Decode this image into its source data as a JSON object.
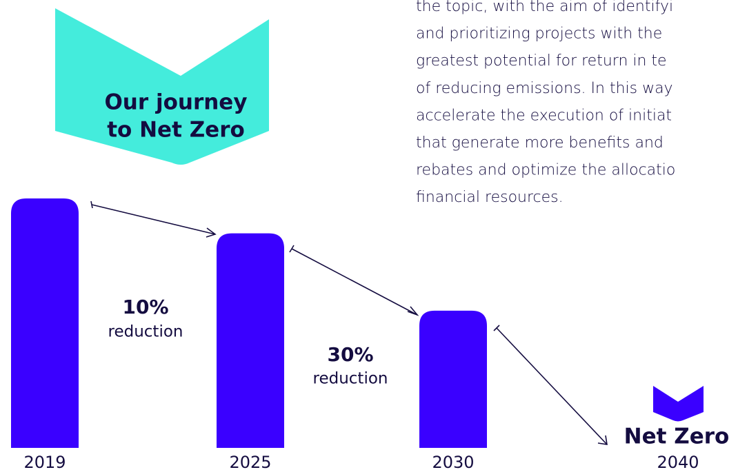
{
  "chart_data": {
    "type": "bar",
    "title": [
      "Our journey",
      "to Net Zero"
    ],
    "text_lines": [
      "the topic, with the aim of identifyi",
      "and prioritizing projects with the",
      "greatest potential for return in te",
      "of reducing emissions. In this way",
      "accelerate the execution of initiat",
      "that generate more benefits and",
      "rebates and optimize the allocatio",
      "financial resources."
    ],
    "categories": [
      "2019",
      "2025",
      "2030",
      "2040"
    ],
    "values": [
      100,
      86,
      55,
      0
    ],
    "color": "#3a00ff",
    "annotations": [
      {
        "value": "10%",
        "label": "reduction"
      },
      {
        "value": "30%",
        "label": "reduction"
      }
    ],
    "end_label": "Net Zero"
  }
}
